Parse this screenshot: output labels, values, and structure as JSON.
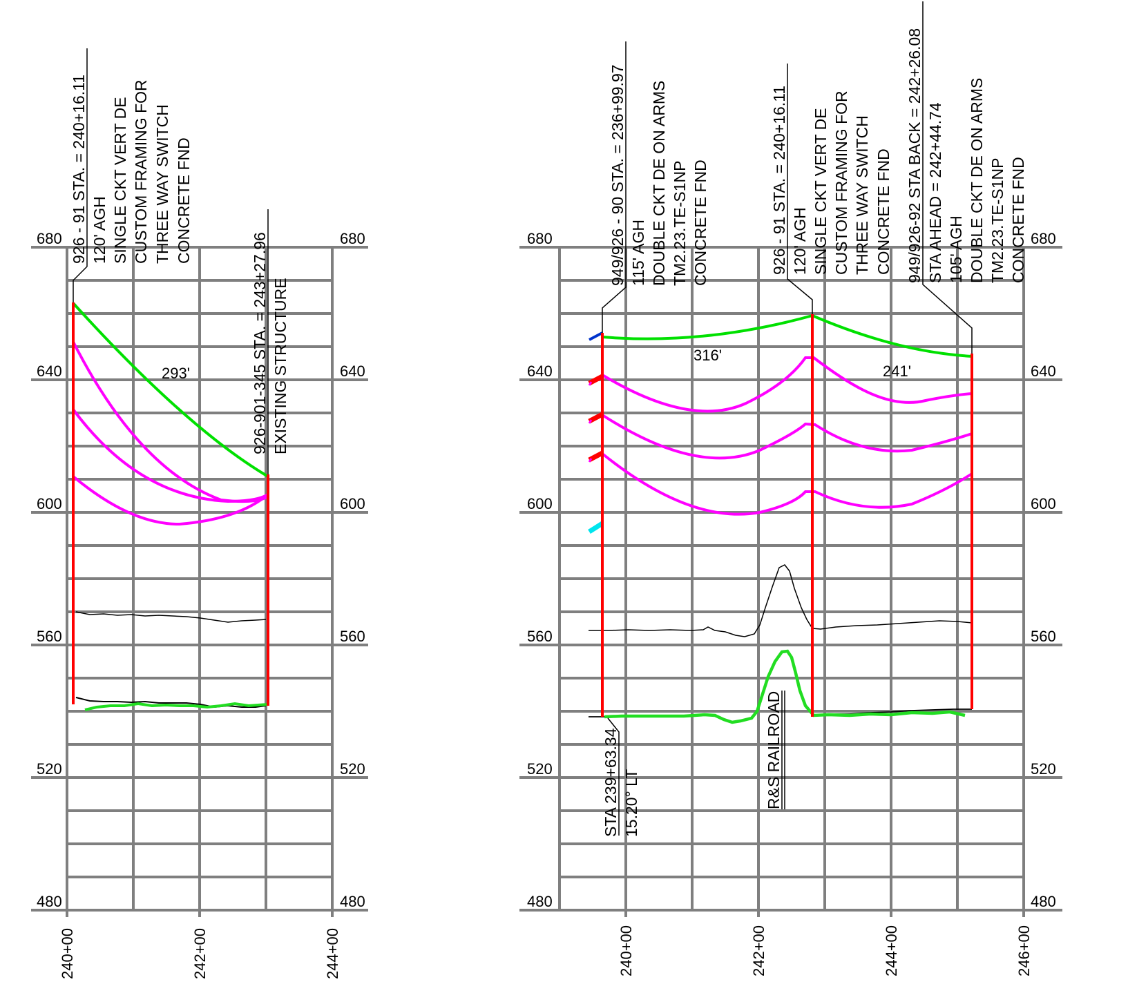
{
  "panels": [
    {
      "id": "left",
      "y_ticks": [
        "680",
        "640",
        "600",
        "560",
        "520",
        "480"
      ],
      "x_ticks": [
        "240+00",
        "242+00",
        "244+00"
      ],
      "structures": [
        {
          "lines": [
            "926 - 91 STA. = 240+16.11",
            "120' AGH",
            "SINGLE CKT  VERT DE",
            "CUSTOM FRAMING FOR",
            "THREE WAY SWITCH",
            "CONCRETE FND"
          ]
        },
        {
          "lines": [
            "926-901-345 STA. = 243+27.96",
            "EXISTING STRUCTURE"
          ]
        }
      ],
      "span_labels": [
        "293'"
      ]
    },
    {
      "id": "right",
      "y_ticks": [
        "680",
        "640",
        "600",
        "560",
        "520",
        "480"
      ],
      "x_ticks": [
        "240+00",
        "242+00",
        "244+00",
        "246+00"
      ],
      "structures": [
        {
          "lines": [
            "949/926 - 90 STA. = 236+99.97",
            "115' AGH",
            "DOUBLE CKT DE ON ARMS",
            "TM2.23.TE-S1NP",
            "CONCRETE FND"
          ]
        },
        {
          "lines": [
            "926 - 91 STA. = 240+16.11",
            "120' AGH",
            "SINGLE CKT  VERT DE",
            "CUSTOM FRAMING FOR",
            "THREE WAY SWITCH",
            "CONCRETE FND"
          ]
        },
        {
          "lines": [
            "949/926-92 STA BACK = 242+26.08",
            "STA AHEAD = 242+44.74",
            "105' AGH",
            "DOUBLE CKT DE ON ARMS",
            "TM2.23.TE-S1NP",
            "CONCRETE FND"
          ]
        }
      ],
      "span_labels": [
        "316'",
        "241'"
      ],
      "crossing_labels": {
        "station": [
          "STA 239+63.34",
          "15.20° LT"
        ],
        "railroad": "R&S RAILROAD"
      }
    }
  ],
  "colors": {
    "grid": "#7f7f7f",
    "structure": "#ff0000",
    "shield_wire": "#00e000",
    "conductor": "#ff00ff",
    "ground": "#000000",
    "ground_green": "#22dd22",
    "arm_blue": "#0033cc",
    "arm_cyan": "#00e5ee"
  }
}
